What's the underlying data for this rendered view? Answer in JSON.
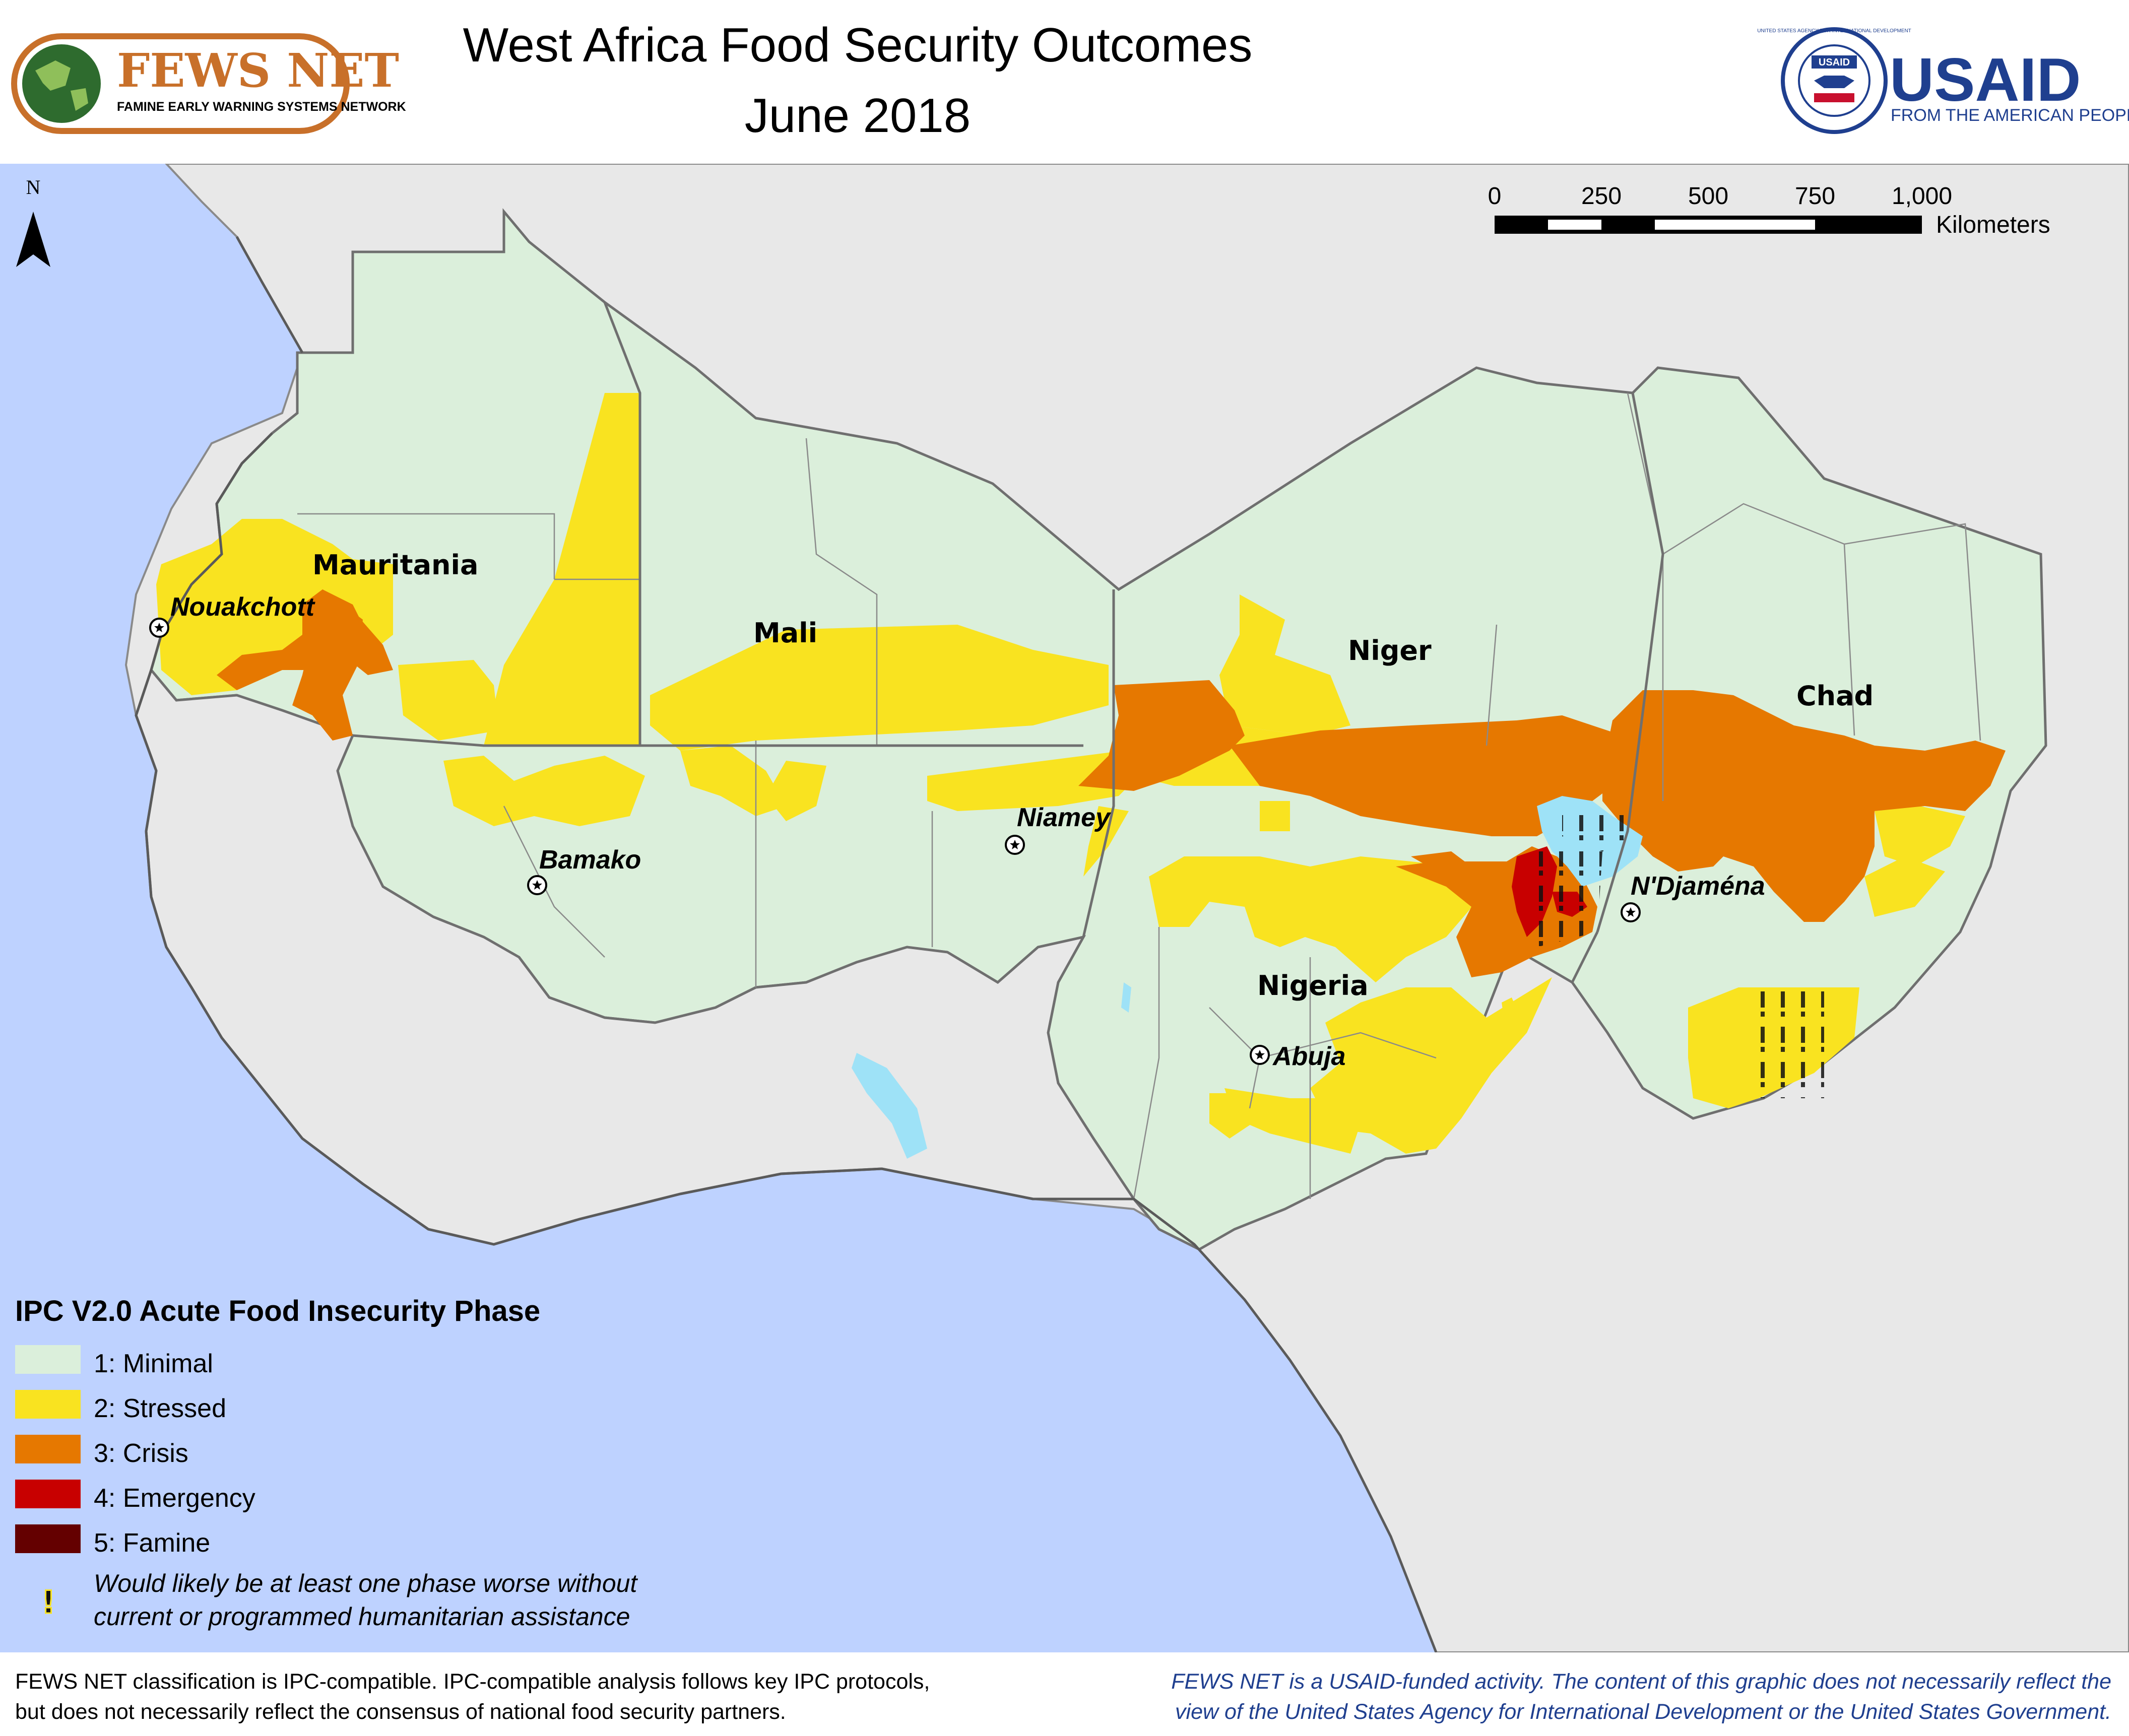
{
  "header": {
    "title_line1": "West Africa Food Security Outcomes",
    "title_line2": "June 2018",
    "fewsnet_logo_text": "FEWS NET",
    "fewsnet_logo_subtext": "FAMINE EARLY WARNING SYSTEMS NETWORK",
    "usaid_logo_text": "USAID",
    "usaid_logo_subtext": "FROM THE AMERICAN PEOPLE",
    "usaid_seal_text": "UNITED STATES AGENCY FOR INTERNATIONAL DEVELOPMENT",
    "usaid_seal_inner_text": "USAID"
  },
  "map": {
    "north_arrow_label": "N",
    "scale_bar": {
      "ticks": [
        "0",
        "250",
        "500",
        "750",
        "1,000"
      ],
      "unit": "Kilometers"
    },
    "countries": [
      "Mauritania",
      "Mali",
      "Niger",
      "Chad",
      "Nigeria"
    ],
    "cities": [
      "Nouakchott",
      "Niamey",
      "Bamako",
      "N'Djaména",
      "Abuja"
    ],
    "colors": {
      "ocean": "#bed2ff",
      "land_outside": "#e8e8e8",
      "phase1": "#dbefdb",
      "phase2": "#f9e320",
      "phase3": "#e67800",
      "phase4": "#c80000",
      "phase5": "#640000",
      "water": "#9ee2f7"
    }
  },
  "legend": {
    "title": "IPC V2.0 Acute Food Insecurity Phase",
    "items": [
      {
        "label": "1: Minimal",
        "color": "#dbefdb"
      },
      {
        "label": "2: Stressed",
        "color": "#f9e320"
      },
      {
        "label": "3: Crisis",
        "color": "#e67800"
      },
      {
        "label": "4: Emergency",
        "color": "#c80000"
      },
      {
        "label": "5: Famine",
        "color": "#640000"
      }
    ],
    "assistance_symbol": "!",
    "assistance_note_line1": "Would likely be at least one phase worse without",
    "assistance_note_line2": "current or programmed humanitarian assistance"
  },
  "footer": {
    "left_line1": "FEWS NET classification is IPC-compatible. IPC-compatible analysis follows key IPC protocols,",
    "left_line2": "but does not necessarily reflect the consensus of national food security partners.",
    "right_line1": "FEWS NET is a USAID-funded activity. The content of this graphic does not necessarily reflect the",
    "right_line2": "view of the United States Agency for International Development or the United States Government."
  }
}
